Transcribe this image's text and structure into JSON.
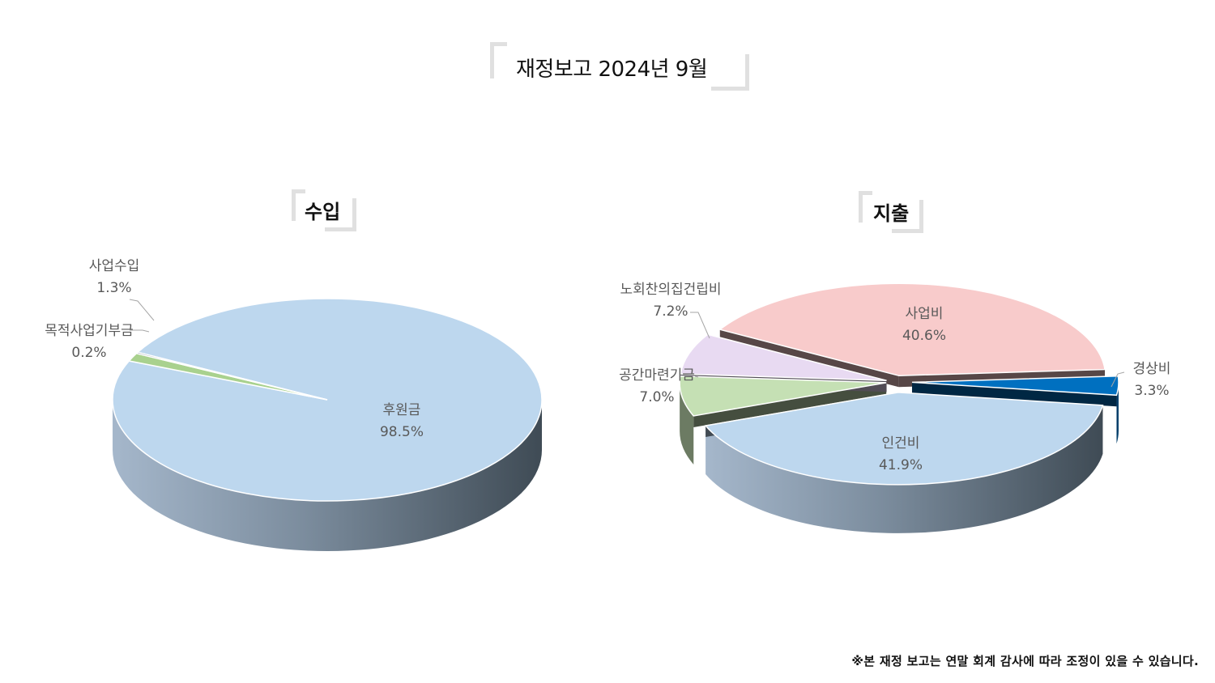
{
  "page": {
    "title": "재정보고 2024년 9월",
    "footnote": "※본 재정 보고는 연말 회계 감사에 따라 조정이 있을 수 있습니다."
  },
  "chart_data": [
    {
      "type": "pie",
      "title": "수입",
      "categories": [
        "후원금",
        "사업수입",
        "목적사업기부금"
      ],
      "values": [
        98.5,
        1.3,
        0.2
      ],
      "labels": [
        "98.5%",
        "1.3%",
        "0.2%"
      ],
      "colors": [
        "#bdd7ee",
        "#a9d18e",
        "#44546a"
      ]
    },
    {
      "type": "pie",
      "title": "지출",
      "categories": [
        "사업비",
        "경상비",
        "인건비",
        "공간마련기금",
        "노회찬의집건립비"
      ],
      "values": [
        40.6,
        3.3,
        41.9,
        7.0,
        7.2
      ],
      "labels": [
        "40.6%",
        "3.3%",
        "41.9%",
        "7.0%",
        "7.2%"
      ],
      "colors": [
        "#f8cbcb",
        "#0070c0",
        "#bdd7ee",
        "#c5e0b4",
        "#e8daf2"
      ]
    }
  ]
}
